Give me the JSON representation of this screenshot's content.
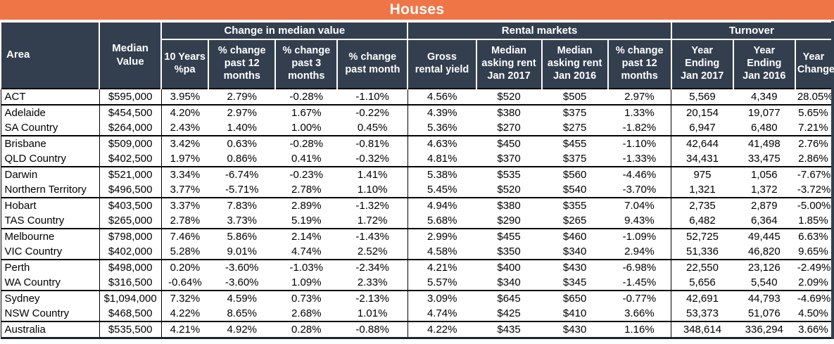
{
  "title": "Houses",
  "colors": {
    "accent_orange": "#EF7547",
    "header_navy": "#333F4F",
    "grid_line": "#000000"
  },
  "table": {
    "area_header": "Area",
    "median_value_header": "Median\nValue",
    "group_headers": [
      {
        "label": "Change in median value"
      },
      {
        "label": "Rental markets"
      },
      {
        "label": "Turnover"
      }
    ],
    "sub_headers": [
      "10 Years\n%pa",
      "% change\npast 12\nmonths",
      "% change\npast 3\nmonths",
      "% change\npast month",
      "Gross\nrental yield",
      "Median\nasking rent\nJan 2017",
      "Median\nasking rent\nJan 2016",
      "% change\npast 12\nmonths",
      "Year\nEnding\nJan 2017",
      "Year\nEnding\nJan 2016",
      "Year\nChange"
    ],
    "rows": [
      {
        "area": "ACT",
        "group_start": true,
        "values": [
          "$595,000",
          "3.95%",
          "2.79%",
          "-0.28%",
          "-1.10%",
          "4.56%",
          "$520",
          "$505",
          "2.97%",
          "5,569",
          "4,349",
          "28.05%"
        ]
      },
      {
        "area": "Adelaide",
        "group_start": true,
        "values": [
          "$454,500",
          "4.20%",
          "2.97%",
          "1.67%",
          "-0.22%",
          "4.39%",
          "$380",
          "$375",
          "1.33%",
          "20,154",
          "19,077",
          "5.65%"
        ]
      },
      {
        "area": "SA Country",
        "group_start": false,
        "values": [
          "$264,000",
          "2.43%",
          "1.40%",
          "1.00%",
          "0.45%",
          "5.36%",
          "$270",
          "$275",
          "-1.82%",
          "6,947",
          "6,480",
          "7.21%"
        ]
      },
      {
        "area": "Brisbane",
        "group_start": true,
        "values": [
          "$509,000",
          "3.42%",
          "0.63%",
          "-0.28%",
          "-0.81%",
          "4.63%",
          "$450",
          "$455",
          "-1.10%",
          "42,644",
          "41,498",
          "2.76%"
        ]
      },
      {
        "area": "QLD Country",
        "group_start": false,
        "values": [
          "$402,500",
          "1.97%",
          "0.86%",
          "0.41%",
          "-0.32%",
          "4.81%",
          "$370",
          "$375",
          "-1.33%",
          "34,431",
          "33,475",
          "2.86%"
        ]
      },
      {
        "area": "Darwin",
        "group_start": true,
        "values": [
          "$521,000",
          "3.34%",
          "-6.74%",
          "-0.23%",
          "1.41%",
          "5.38%",
          "$535",
          "$560",
          "-4.46%",
          "975",
          "1,056",
          "-7.67%"
        ]
      },
      {
        "area": "Northern Territory",
        "group_start": false,
        "values": [
          "$496,500",
          "3.77%",
          "-5.71%",
          "2.78%",
          "1.10%",
          "5.45%",
          "$520",
          "$540",
          "-3.70%",
          "1,321",
          "1,372",
          "-3.72%"
        ]
      },
      {
        "area": "Hobart",
        "group_start": true,
        "values": [
          "$403,500",
          "3.37%",
          "7.83%",
          "2.89%",
          "-1.32%",
          "4.94%",
          "$380",
          "$355",
          "7.04%",
          "2,735",
          "2,879",
          "-5.00%"
        ]
      },
      {
        "area": "TAS Country",
        "group_start": false,
        "values": [
          "$265,000",
          "2.78%",
          "3.73%",
          "5.19%",
          "1.72%",
          "5.68%",
          "$290",
          "$265",
          "9.43%",
          "6,482",
          "6,364",
          "1.85%"
        ]
      },
      {
        "area": "Melbourne",
        "group_start": true,
        "values": [
          "$798,000",
          "7.46%",
          "5.86%",
          "2.14%",
          "-1.43%",
          "2.99%",
          "$455",
          "$460",
          "-1.09%",
          "52,725",
          "49,445",
          "6.63%"
        ]
      },
      {
        "area": "VIC Country",
        "group_start": false,
        "values": [
          "$402,000",
          "5.28%",
          "9.01%",
          "4.74%",
          "2.52%",
          "4.58%",
          "$350",
          "$340",
          "2.94%",
          "51,336",
          "46,820",
          "9.65%"
        ]
      },
      {
        "area": "Perth",
        "group_start": true,
        "values": [
          "$498,000",
          "0.20%",
          "-3.60%",
          "-1.03%",
          "-2.34%",
          "4.21%",
          "$400",
          "$430",
          "-6.98%",
          "22,550",
          "23,126",
          "-2.49%"
        ]
      },
      {
        "area": "WA Country",
        "group_start": false,
        "values": [
          "$316,500",
          "-0.64%",
          "-3.60%",
          "1.09%",
          "2.33%",
          "5.57%",
          "$340",
          "$345",
          "-1.45%",
          "5,656",
          "5,540",
          "2.09%"
        ]
      },
      {
        "area": "Sydney",
        "group_start": true,
        "values": [
          "$1,094,000",
          "7.32%",
          "4.59%",
          "0.73%",
          "-2.13%",
          "3.09%",
          "$645",
          "$650",
          "-0.77%",
          "42,691",
          "44,793",
          "-4.69%"
        ]
      },
      {
        "area": "NSW Country",
        "group_start": false,
        "values": [
          "$468,500",
          "4.22%",
          "8.65%",
          "2.68%",
          "1.01%",
          "4.74%",
          "$425",
          "$410",
          "3.66%",
          "53,373",
          "51,076",
          "4.50%"
        ]
      },
      {
        "area": "Australia",
        "group_start": true,
        "values": [
          "$535,500",
          "4.21%",
          "4.92%",
          "0.28%",
          "-0.88%",
          "4.22%",
          "$435",
          "$430",
          "1.16%",
          "348,614",
          "336,294",
          "3.66%"
        ]
      }
    ]
  }
}
